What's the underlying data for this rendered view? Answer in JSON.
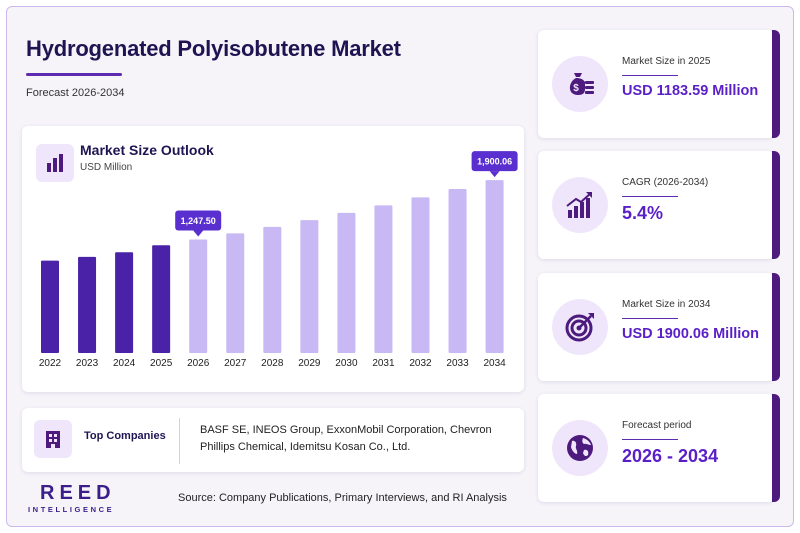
{
  "header": {
    "title": "Hydrogenated Polyisobutene Market",
    "subtitle": "Forecast 2026-2034"
  },
  "chart_panel": {
    "title": "Market Size Outlook",
    "unit": "USD Million"
  },
  "chart_data": {
    "type": "bar",
    "categories": [
      "2022",
      "2023",
      "2024",
      "2025",
      "2026",
      "2027",
      "2028",
      "2029",
      "2030",
      "2031",
      "2032",
      "2033",
      "2034"
    ],
    "values": [
      1015.2,
      1056.0,
      1106.8,
      1183.59,
      1247.5,
      1314.9,
      1385.9,
      1460.7,
      1539.6,
      1622.7,
      1710.3,
      1802.7,
      1900.06
    ],
    "historical_count": 4,
    "ylim": [
      0,
      2000
    ],
    "grid": false,
    "colors": {
      "historical": "#4a22a7",
      "forecast": "#c8b9f4",
      "callout": "#5a2fcf"
    },
    "callouts": [
      {
        "category": "2026",
        "label": "1,247.50"
      },
      {
        "category": "2034",
        "label": "1,900.06"
      }
    ]
  },
  "companies": {
    "label": "Top Companies",
    "text": "BASF SE, INEOS Group, ExxonMobil Corporation, Chevron Phillips Chemical, Idemitsu Kosan Co., Ltd."
  },
  "footer": {
    "logo_main": "REED",
    "logo_sub": "INTELLIGENCE",
    "source": "Source: Company Publications, Primary Interviews, and RI Analysis"
  },
  "stats": [
    {
      "icon": "money-bag-icon",
      "label": "Market Size in 2025",
      "value": "USD 1183.59 Million"
    },
    {
      "icon": "growth-chart-icon",
      "label": "CAGR (2026-2034)",
      "value": "5.4%"
    },
    {
      "icon": "target-icon",
      "label": "Market Size in 2034",
      "value": "USD 1900.06 Million"
    },
    {
      "icon": "globe-icon",
      "label": "Forecast period",
      "value": "2026 - 2034"
    }
  ],
  "theme": {
    "accent": "#5a1fc7",
    "dark": "#4d1a7d",
    "icon_bg": "#efe6fb"
  }
}
